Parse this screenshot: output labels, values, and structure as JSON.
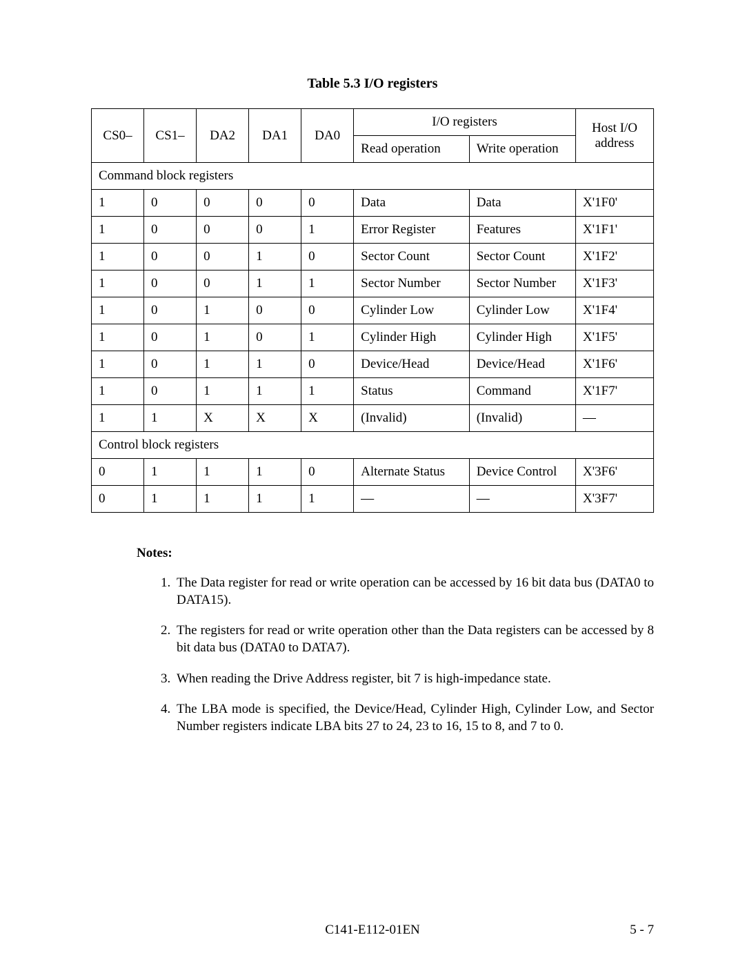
{
  "title": "Table 5.3    I/O registers",
  "table": {
    "headers": {
      "cs0": "CS0–",
      "cs1": "CS1–",
      "da2": "DA2",
      "da1": "DA1",
      "da0": "DA0",
      "io_registers": "I/O registers",
      "host_io": "Host I/O",
      "address": "address",
      "read_op": "Read operation",
      "write_op": "Write operation"
    },
    "section1": "Command block registers",
    "rows1": [
      {
        "cs0": "1",
        "cs1": "0",
        "da2": "0",
        "da1": "0",
        "da0": "0",
        "read": "Data",
        "write": "Data",
        "addr": "X'1F0'"
      },
      {
        "cs0": "1",
        "cs1": "0",
        "da2": "0",
        "da1": "0",
        "da0": "1",
        "read": "Error Register",
        "write": "Features",
        "addr": "X'1F1'"
      },
      {
        "cs0": "1",
        "cs1": "0",
        "da2": "0",
        "da1": "1",
        "da0": "0",
        "read": "Sector Count",
        "write": "Sector Count",
        "addr": "X'1F2'"
      },
      {
        "cs0": "1",
        "cs1": "0",
        "da2": "0",
        "da1": "1",
        "da0": "1",
        "read": "Sector Number",
        "write": "Sector Number",
        "addr": "X'1F3'"
      },
      {
        "cs0": "1",
        "cs1": "0",
        "da2": "1",
        "da1": "0",
        "da0": "0",
        "read": "Cylinder Low",
        "write": "Cylinder Low",
        "addr": "X'1F4'"
      },
      {
        "cs0": "1",
        "cs1": "0",
        "da2": "1",
        "da1": "0",
        "da0": "1",
        "read": "Cylinder High",
        "write": "Cylinder High",
        "addr": "X'1F5'"
      },
      {
        "cs0": "1",
        "cs1": "0",
        "da2": "1",
        "da1": "1",
        "da0": "0",
        "read": "Device/Head",
        "write": "Device/Head",
        "addr": "X'1F6'"
      },
      {
        "cs0": "1",
        "cs1": "0",
        "da2": "1",
        "da1": "1",
        "da0": "1",
        "read": "Status",
        "write": "Command",
        "addr": "X'1F7'"
      },
      {
        "cs0": "1",
        "cs1": "1",
        "da2": "X",
        "da1": "X",
        "da0": "X",
        "read": "(Invalid)",
        "write": "(Invalid)",
        "addr": "—"
      }
    ],
    "section2": "Control block registers",
    "rows2": [
      {
        "cs0": "0",
        "cs1": "1",
        "da2": "1",
        "da1": "1",
        "da0": "0",
        "read": "Alternate Status",
        "write": "Device Control",
        "addr": "X'3F6'"
      },
      {
        "cs0": "0",
        "cs1": "1",
        "da2": "1",
        "da1": "1",
        "da0": "1",
        "read": "—",
        "write": "—",
        "addr": "X'3F7'"
      }
    ]
  },
  "notes": {
    "heading": "Notes:",
    "items": [
      "The Data register for read or write operation can be accessed by 16 bit data bus (DATA0 to DATA15).",
      "The registers for read or write operation other than the Data registers can be accessed by 8 bit data bus (DATA0 to DATA7).",
      "When reading the Drive Address register, bit 7 is high-impedance state.",
      "The LBA mode is specified, the Device/Head, Cylinder High, Cylinder Low, and Sector Number registers indicate LBA bits 27 to 24, 23 to 16, 15 to 8, and 7 to 0."
    ]
  },
  "footer": {
    "center": "C141-E112-01EN",
    "right": "5 - 7"
  }
}
